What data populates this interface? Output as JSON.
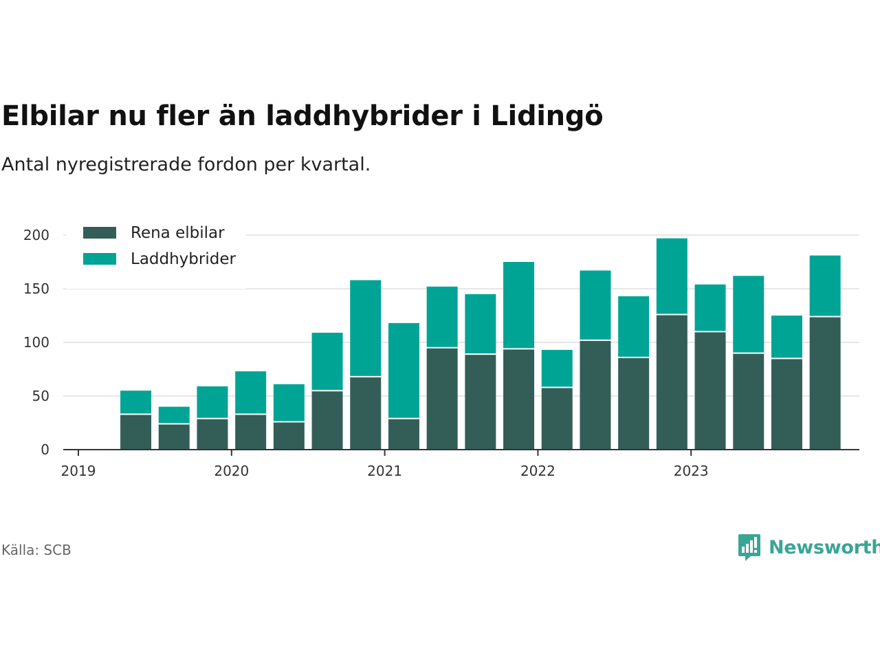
{
  "title": "Elbilar nu fler än laddhybrider i Lidingö",
  "subtitle": "Antal nyregistrerade fordon per kvartal.",
  "source": "Källa: SCB",
  "brand": "Newsworthy",
  "colors": {
    "rena_elbilar": "#335e57",
    "laddhybrider": "#00a495",
    "grid": "#dddddd",
    "axis": "#333333",
    "brand": "#3aa595"
  },
  "chart_data": {
    "type": "bar",
    "stacked": true,
    "title": "Elbilar nu fler än laddhybrider i Lidingö",
    "xlabel": "",
    "ylabel": "",
    "ylim": [
      0,
      200
    ],
    "yticks": [
      0,
      50,
      100,
      150,
      200
    ],
    "xticks": [
      "2019",
      "2020",
      "2021",
      "2022",
      "2023"
    ],
    "grid": true,
    "legend_position": "top-left",
    "categories": [
      "2019 Q2",
      "2019 Q3",
      "2019 Q4",
      "2020 Q1",
      "2020 Q2",
      "2020 Q3",
      "2020 Q4",
      "2021 Q1",
      "2021 Q2",
      "2021 Q3",
      "2021 Q4",
      "2022 Q1",
      "2022 Q2",
      "2022 Q3",
      "2022 Q4",
      "2023 Q1",
      "2023 Q2",
      "2023 Q3",
      "2023 Q4"
    ],
    "series": [
      {
        "name": "Rena elbilar",
        "values": [
          33,
          24,
          29,
          33,
          26,
          55,
          68,
          29,
          95,
          89,
          94,
          58,
          102,
          86,
          126,
          110,
          90,
          85,
          124
        ]
      },
      {
        "name": "Laddhybrider",
        "values": [
          22,
          16,
          30,
          40,
          35,
          54,
          90,
          89,
          57,
          56,
          81,
          35,
          65,
          57,
          71,
          44,
          72,
          40,
          57
        ]
      }
    ]
  }
}
